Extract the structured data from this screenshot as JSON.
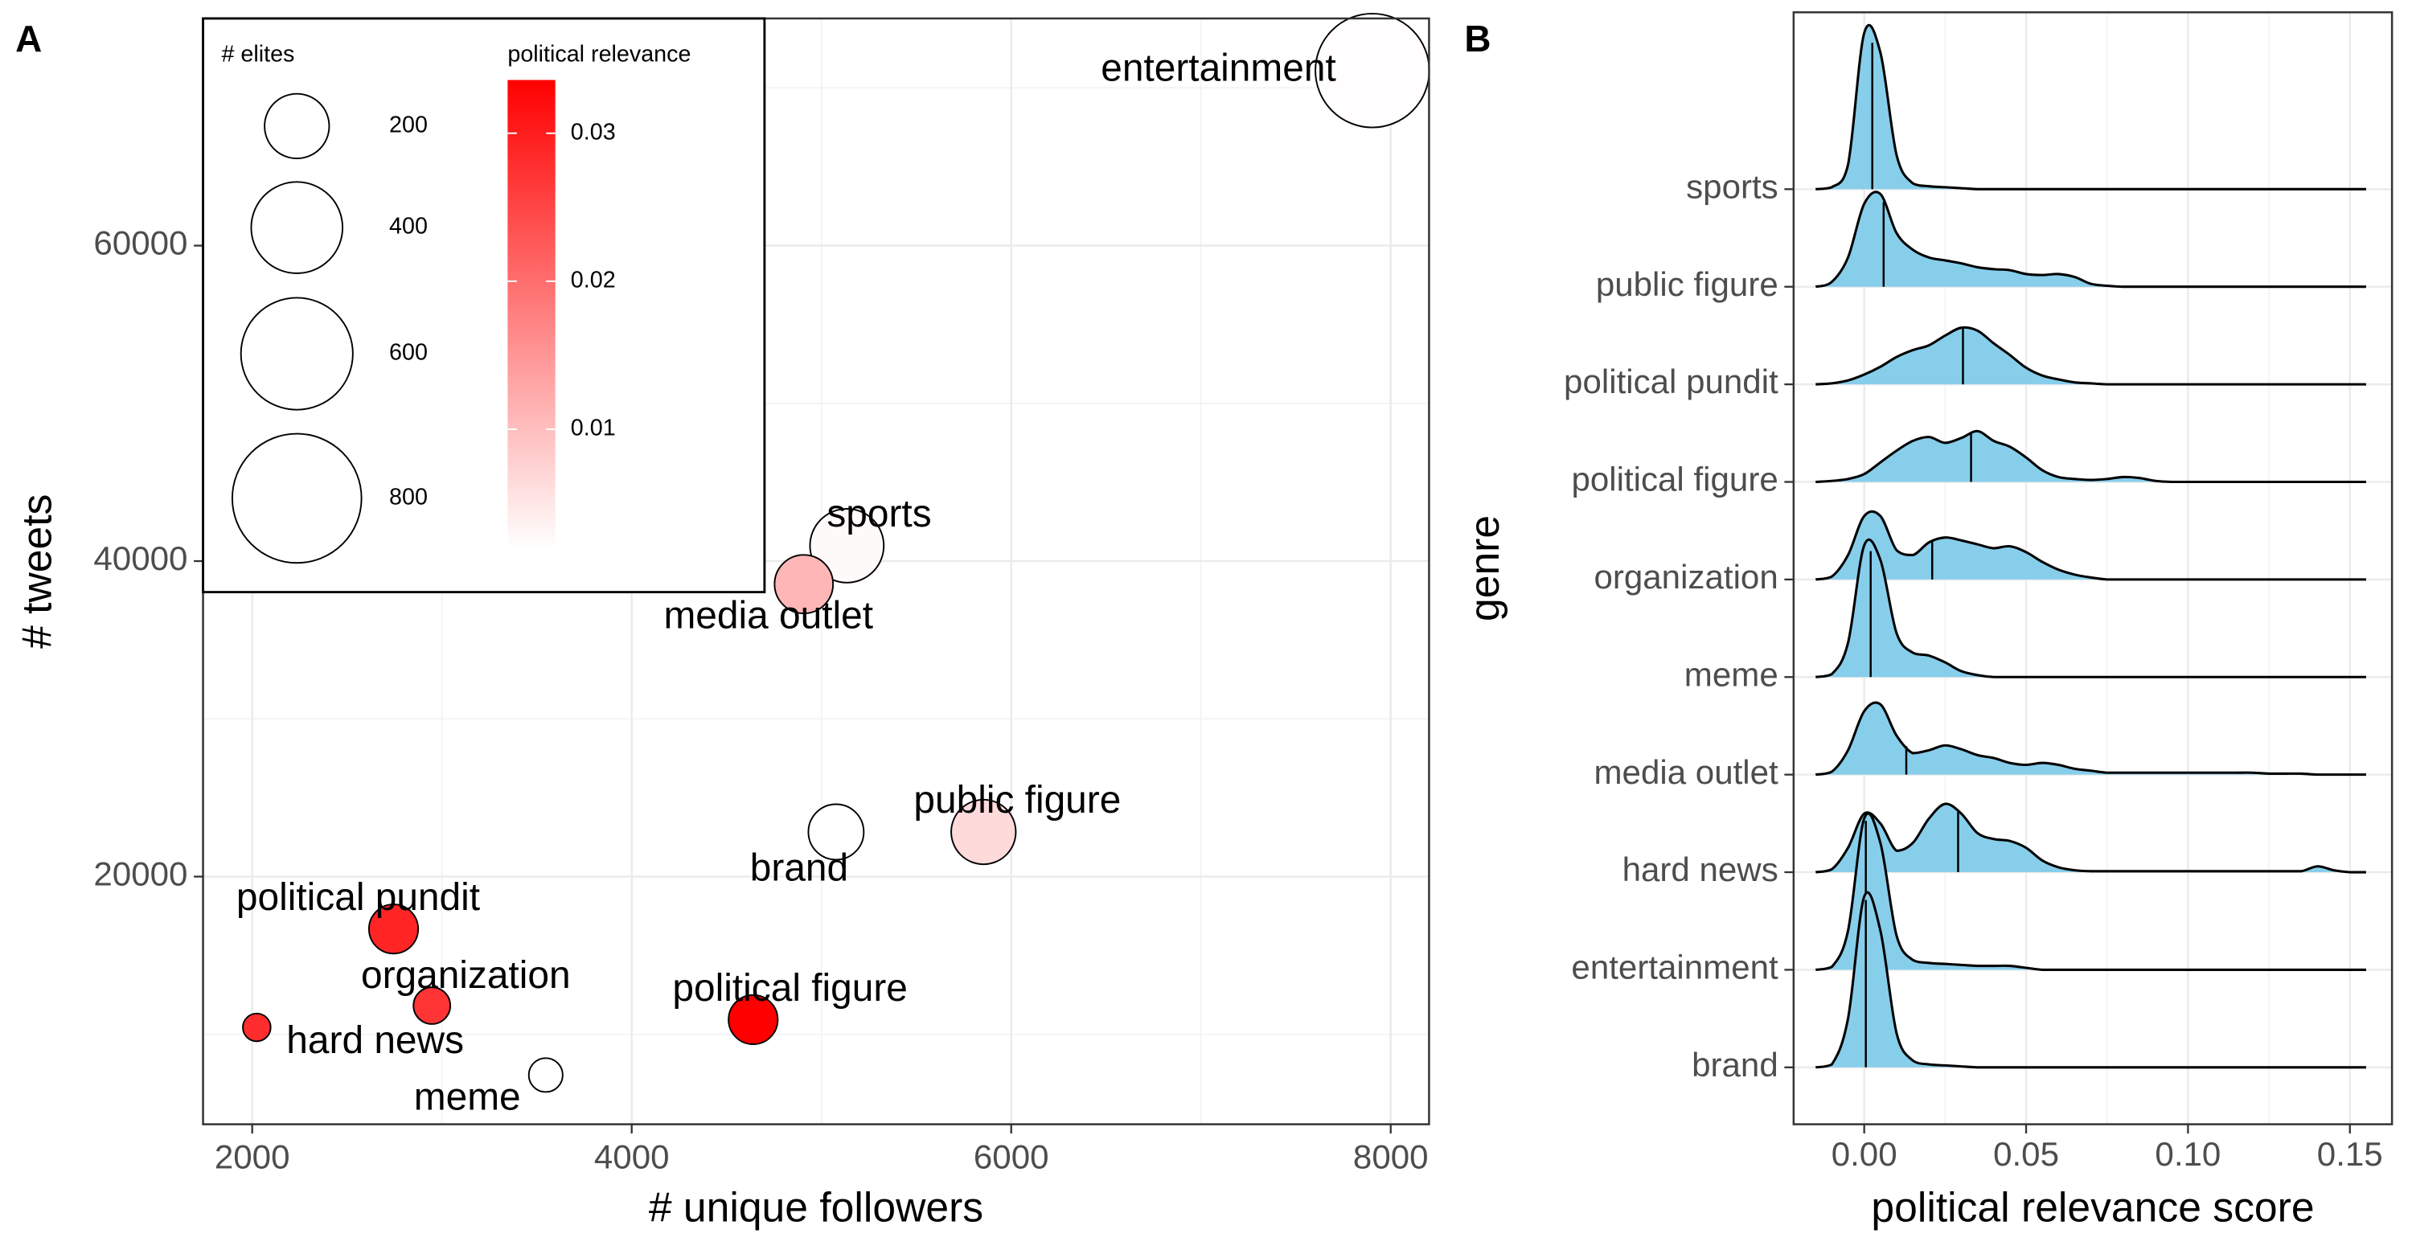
{
  "chart_data": [
    {
      "type": "bubble",
      "panel": "A",
      "xlabel": "# unique followers",
      "ylabel": "# tweets",
      "categories": [
        "entertainment",
        "sports",
        "media outlet",
        "brand",
        "public figure",
        "political pundit",
        "organization",
        "hard news",
        "political figure",
        "meme"
      ],
      "x": [
        7903,
        5134,
        4907,
        5077,
        5854,
        2745,
        2947,
        2024,
        4640,
        3547
      ],
      "y": [
        71100,
        40975,
        38540,
        22830,
        22830,
        16680,
        11820,
        10440,
        10930,
        7420
      ],
      "size": [
        621,
        261,
        164,
        147,
        200,
        116,
        65,
        37,
        116,
        55
      ],
      "color_values": [
        0.0022,
        0.0025,
        0.011,
        0.0019,
        0.0065,
        0.029,
        0.027,
        0.028,
        0.0336,
        0.0019
      ],
      "xlim": [
        1741,
        8202
      ],
      "ylim": [
        4300,
        74400
      ],
      "xticks": [
        2000,
        4000,
        6000,
        8000
      ],
      "yticks": [
        20000,
        40000,
        60000
      ],
      "xminor": [
        3000,
        5000,
        7000
      ],
      "yminor": [
        10000,
        30000,
        50000,
        70000
      ],
      "grid": true,
      "size_legend": {
        "title": "# elites",
        "values": [
          200,
          400,
          600,
          800
        ]
      },
      "color_legend": {
        "title": "political relevance",
        "ticks": [
          0.01,
          0.02,
          0.03
        ],
        "lim": [
          0.0019,
          0.0336
        ],
        "low": "#ffffff",
        "high": "#ff0000"
      }
    },
    {
      "type": "ridgeline",
      "panel": "B",
      "xlabel": "political relevance score",
      "ylabel": "genre",
      "fill": "#87ceeb",
      "x": [
        -0.015,
        -0.01,
        -0.005,
        0,
        0.005,
        0.01,
        0.015,
        0.02,
        0.025,
        0.03,
        0.035,
        0.04,
        0.045,
        0.05,
        0.055,
        0.06,
        0.065,
        0.07,
        0.075,
        0.08,
        0.085,
        0.09,
        0.095,
        0.1,
        0.105,
        0.11,
        0.115,
        0.12,
        0.125,
        0.13,
        0.135,
        0.14,
        0.145,
        0.15,
        0.155
      ],
      "xlim": [
        -0.0218,
        0.163
      ],
      "xticks": [
        {
          "value": 0,
          "label": "0.00"
        },
        0.05,
        {
          "value": 0.1,
          "label": "0.10"
        },
        0.15
      ],
      "xminor": [
        0.025,
        0.075,
        0.125
      ],
      "grid": true,
      "series": [
        {
          "name": "brand",
          "median": 0.0005,
          "values": [
            0,
            0.03,
            0.5,
            1.75,
            1.4,
            0.35,
            0.07,
            0.03,
            0.02,
            0.01,
            0,
            0,
            0,
            0,
            0,
            0,
            0,
            0,
            0,
            0,
            0,
            0,
            0,
            0,
            0,
            0,
            0,
            0,
            0,
            0,
            0,
            0,
            0,
            0,
            0
          ]
        },
        {
          "name": "entertainment",
          "median": 0.0005,
          "values": [
            0,
            0.03,
            0.4,
            1.55,
            1.3,
            0.35,
            0.1,
            0.07,
            0.06,
            0.05,
            0.04,
            0.04,
            0.04,
            0.02,
            0,
            0,
            0,
            0,
            0,
            0,
            0,
            0,
            0,
            0,
            0,
            0,
            0,
            0,
            0,
            0,
            0,
            0,
            0,
            0,
            0
          ]
        },
        {
          "name": "hard news",
          "median": 0.029,
          "values": [
            0,
            0.03,
            0.25,
            0.6,
            0.5,
            0.22,
            0.3,
            0.55,
            0.7,
            0.6,
            0.4,
            0.34,
            0.32,
            0.25,
            0.12,
            0.05,
            0.02,
            0.01,
            0.01,
            0.01,
            0.01,
            0.01,
            0.01,
            0.01,
            0.01,
            0.01,
            0.01,
            0.01,
            0.01,
            0.01,
            0.01,
            0.06,
            0.02,
            0,
            0
          ]
        },
        {
          "name": "media outlet",
          "median": 0.013,
          "values": [
            0,
            0.03,
            0.25,
            0.65,
            0.72,
            0.4,
            0.22,
            0.25,
            0.3,
            0.26,
            0.2,
            0.17,
            0.12,
            0.1,
            0.12,
            0.1,
            0.06,
            0.04,
            0.02,
            0.02,
            0.02,
            0.02,
            0.02,
            0.02,
            0.02,
            0.02,
            0.02,
            0.02,
            0.01,
            0.01,
            0.01,
            0,
            0,
            0,
            0
          ]
        },
        {
          "name": "meme",
          "median": 0.002,
          "values": [
            0,
            0.03,
            0.35,
            1.35,
            1.2,
            0.45,
            0.25,
            0.22,
            0.15,
            0.06,
            0.02,
            0,
            0,
            0,
            0,
            0,
            0,
            0,
            0,
            0,
            0,
            0,
            0,
            0,
            0,
            0,
            0,
            0,
            0,
            0,
            0,
            0,
            0,
            0,
            0
          ]
        },
        {
          "name": "organization",
          "median": 0.021,
          "values": [
            0,
            0.03,
            0.25,
            0.65,
            0.65,
            0.3,
            0.25,
            0.38,
            0.43,
            0.4,
            0.36,
            0.32,
            0.34,
            0.28,
            0.18,
            0.1,
            0.05,
            0.02,
            0,
            0,
            0,
            0,
            0,
            0,
            0,
            0,
            0,
            0,
            0,
            0,
            0,
            0,
            0,
            0,
            0
          ]
        },
        {
          "name": "political figure",
          "median": 0.033,
          "values": [
            0,
            0.01,
            0.03,
            0.08,
            0.2,
            0.32,
            0.42,
            0.46,
            0.4,
            0.45,
            0.52,
            0.42,
            0.36,
            0.25,
            0.12,
            0.05,
            0.03,
            0.02,
            0.03,
            0.05,
            0.04,
            0.01,
            0,
            0,
            0,
            0,
            0,
            0,
            0,
            0,
            0,
            0,
            0,
            0,
            0
          ]
        },
        {
          "name": "political pundit",
          "median": 0.0305,
          "values": [
            0,
            0.01,
            0.04,
            0.1,
            0.18,
            0.28,
            0.35,
            0.4,
            0.5,
            0.58,
            0.55,
            0.42,
            0.3,
            0.17,
            0.09,
            0.05,
            0.02,
            0.01,
            0,
            0,
            0,
            0,
            0,
            0,
            0,
            0,
            0,
            0,
            0,
            0,
            0,
            0,
            0,
            0,
            0
          ]
        },
        {
          "name": "public figure",
          "median": 0.006,
          "values": [
            0,
            0.05,
            0.3,
            0.85,
            0.95,
            0.55,
            0.38,
            0.3,
            0.27,
            0.24,
            0.2,
            0.18,
            0.17,
            0.13,
            0.12,
            0.13,
            0.1,
            0.03,
            0.01,
            0,
            0,
            0,
            0,
            0,
            0,
            0,
            0,
            0,
            0,
            0,
            0,
            0,
            0,
            0,
            0
          ]
        },
        {
          "name": "sports",
          "median": 0.0025,
          "values": [
            0,
            0.02,
            0.25,
            1.6,
            1.4,
            0.35,
            0.06,
            0.03,
            0.02,
            0.01,
            0,
            0,
            0,
            0,
            0,
            0,
            0,
            0,
            0,
            0,
            0,
            0,
            0,
            0,
            0,
            0,
            0,
            0,
            0,
            0,
            0,
            0,
            0,
            0,
            0
          ]
        }
      ]
    }
  ]
}
